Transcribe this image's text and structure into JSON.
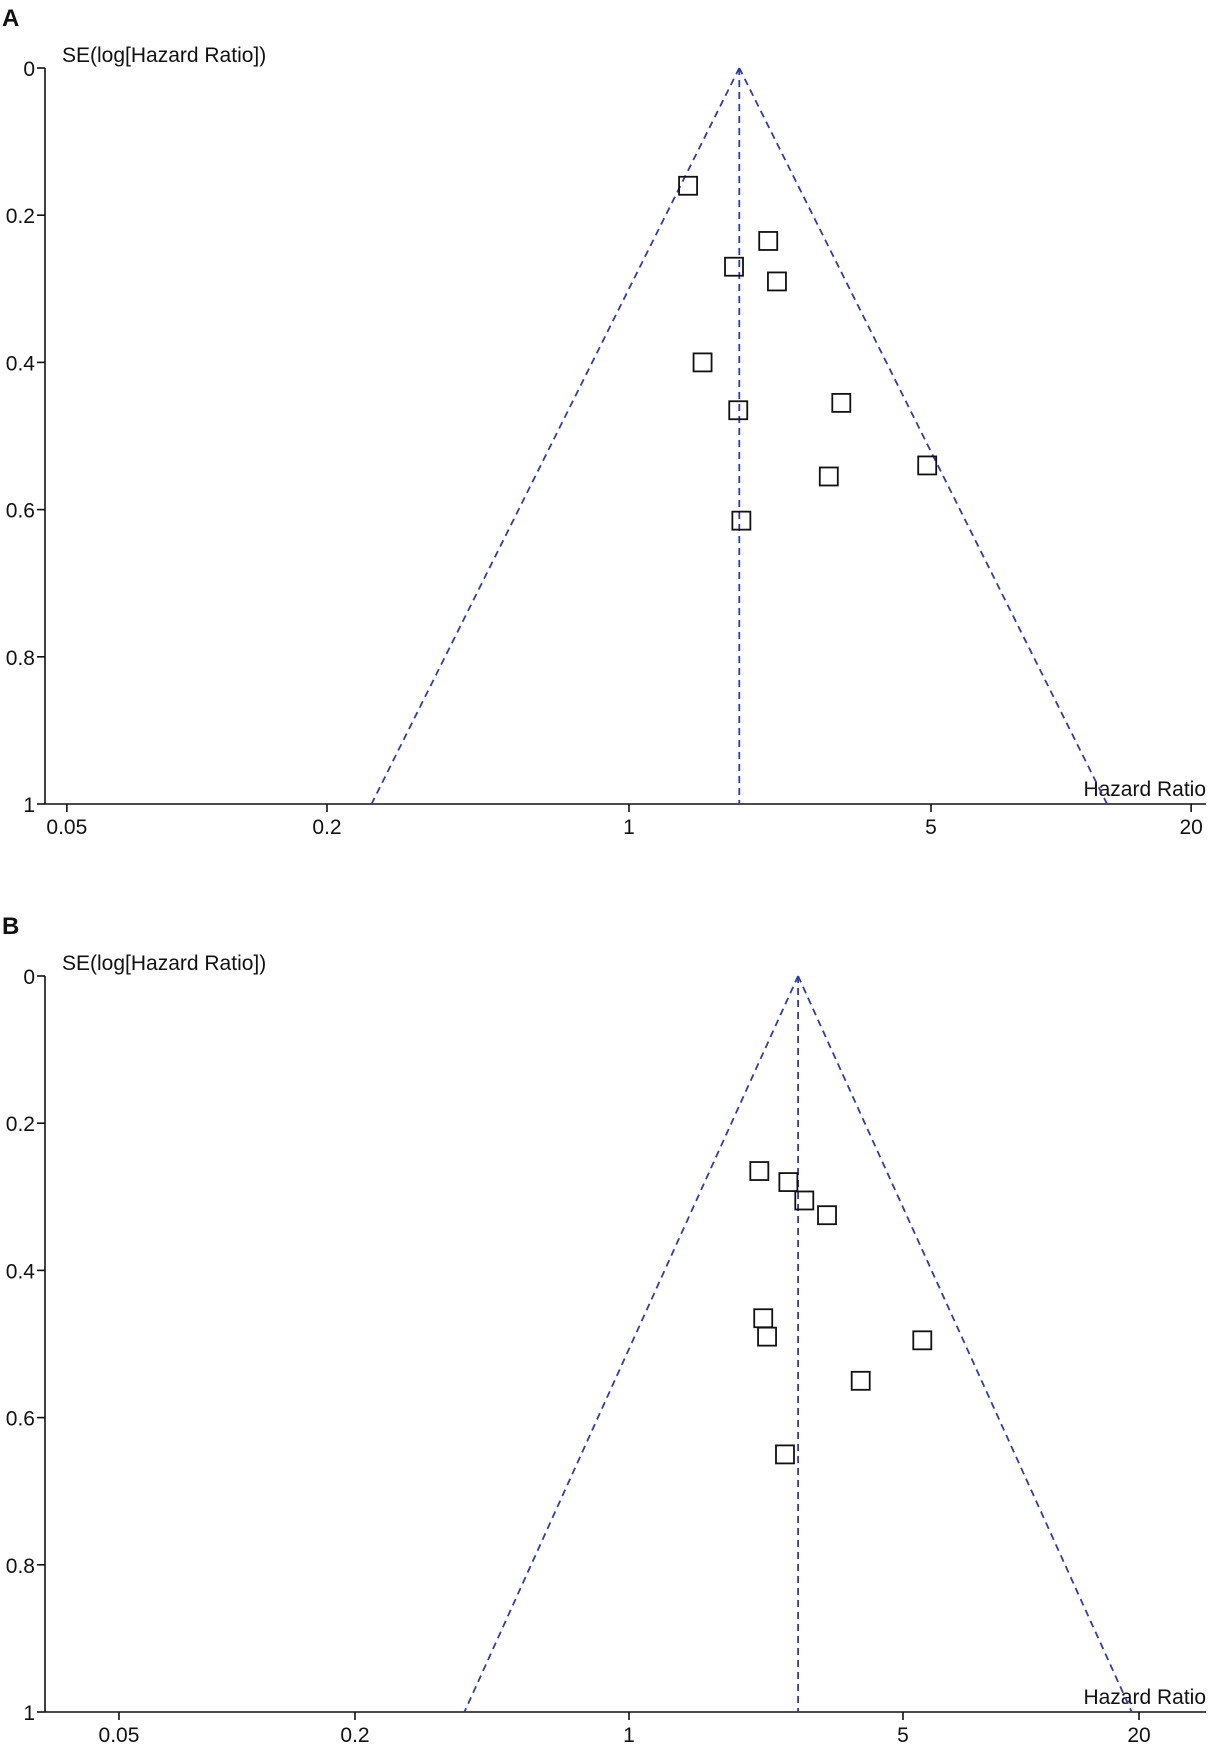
{
  "chart_data": [
    {
      "panel": "A",
      "type": "scatter",
      "xlabel": "Hazard Ratio",
      "ylabel": "SE(log[Hazard Ratio])",
      "x_scale": "log",
      "xlim": [
        0.04,
        22
      ],
      "ylim": [
        0,
        1
      ],
      "y_reversed": true,
      "x_ticks": [
        0.05,
        0.2,
        1,
        5,
        20
      ],
      "x_tick_labels": [
        "0.05",
        "0.2",
        "1",
        "5",
        "20"
      ],
      "y_ticks": [
        0,
        0.2,
        0.4,
        0.6,
        0.8,
        1
      ],
      "y_tick_labels": [
        "0",
        "0.2",
        "0.4",
        "0.6",
        "0.8",
        "1"
      ],
      "pooled_hr": 1.8,
      "funnel_color": "#2e3da8",
      "marker": "open-square",
      "points": [
        {
          "x": 1.37,
          "y": 0.16
        },
        {
          "x": 2.1,
          "y": 0.235
        },
        {
          "x": 1.75,
          "y": 0.27
        },
        {
          "x": 2.2,
          "y": 0.29
        },
        {
          "x": 1.48,
          "y": 0.4
        },
        {
          "x": 3.1,
          "y": 0.455
        },
        {
          "x": 1.79,
          "y": 0.465
        },
        {
          "x": 4.9,
          "y": 0.54
        },
        {
          "x": 2.9,
          "y": 0.555
        },
        {
          "x": 1.82,
          "y": 0.615
        }
      ]
    },
    {
      "panel": "B",
      "type": "scatter",
      "xlabel": "Hazard Ratio",
      "ylabel": "SE(log[Hazard Ratio])",
      "x_scale": "log",
      "xlim": [
        0.04,
        22
      ],
      "ylim": [
        0,
        1
      ],
      "y_reversed": true,
      "x_ticks": [
        0.05,
        0.2,
        1,
        5,
        20
      ],
      "x_tick_labels": [
        "0.05",
        "0.2",
        "1",
        "5",
        "20"
      ],
      "y_ticks": [
        0,
        0.2,
        0.4,
        0.6,
        0.8,
        1
      ],
      "y_tick_labels": [
        "0",
        "0.2",
        "0.4",
        "0.6",
        "0.8",
        "1"
      ],
      "pooled_hr": 2.7,
      "funnel_color": "#2e3da8",
      "marker": "open-square",
      "points": [
        {
          "x": 2.15,
          "y": 0.265
        },
        {
          "x": 2.55,
          "y": 0.28
        },
        {
          "x": 2.8,
          "y": 0.305
        },
        {
          "x": 3.2,
          "y": 0.325
        },
        {
          "x": 2.2,
          "y": 0.465
        },
        {
          "x": 2.25,
          "y": 0.49
        },
        {
          "x": 5.6,
          "y": 0.495
        },
        {
          "x": 3.9,
          "y": 0.55
        },
        {
          "x": 2.5,
          "y": 0.65
        }
      ]
    }
  ]
}
